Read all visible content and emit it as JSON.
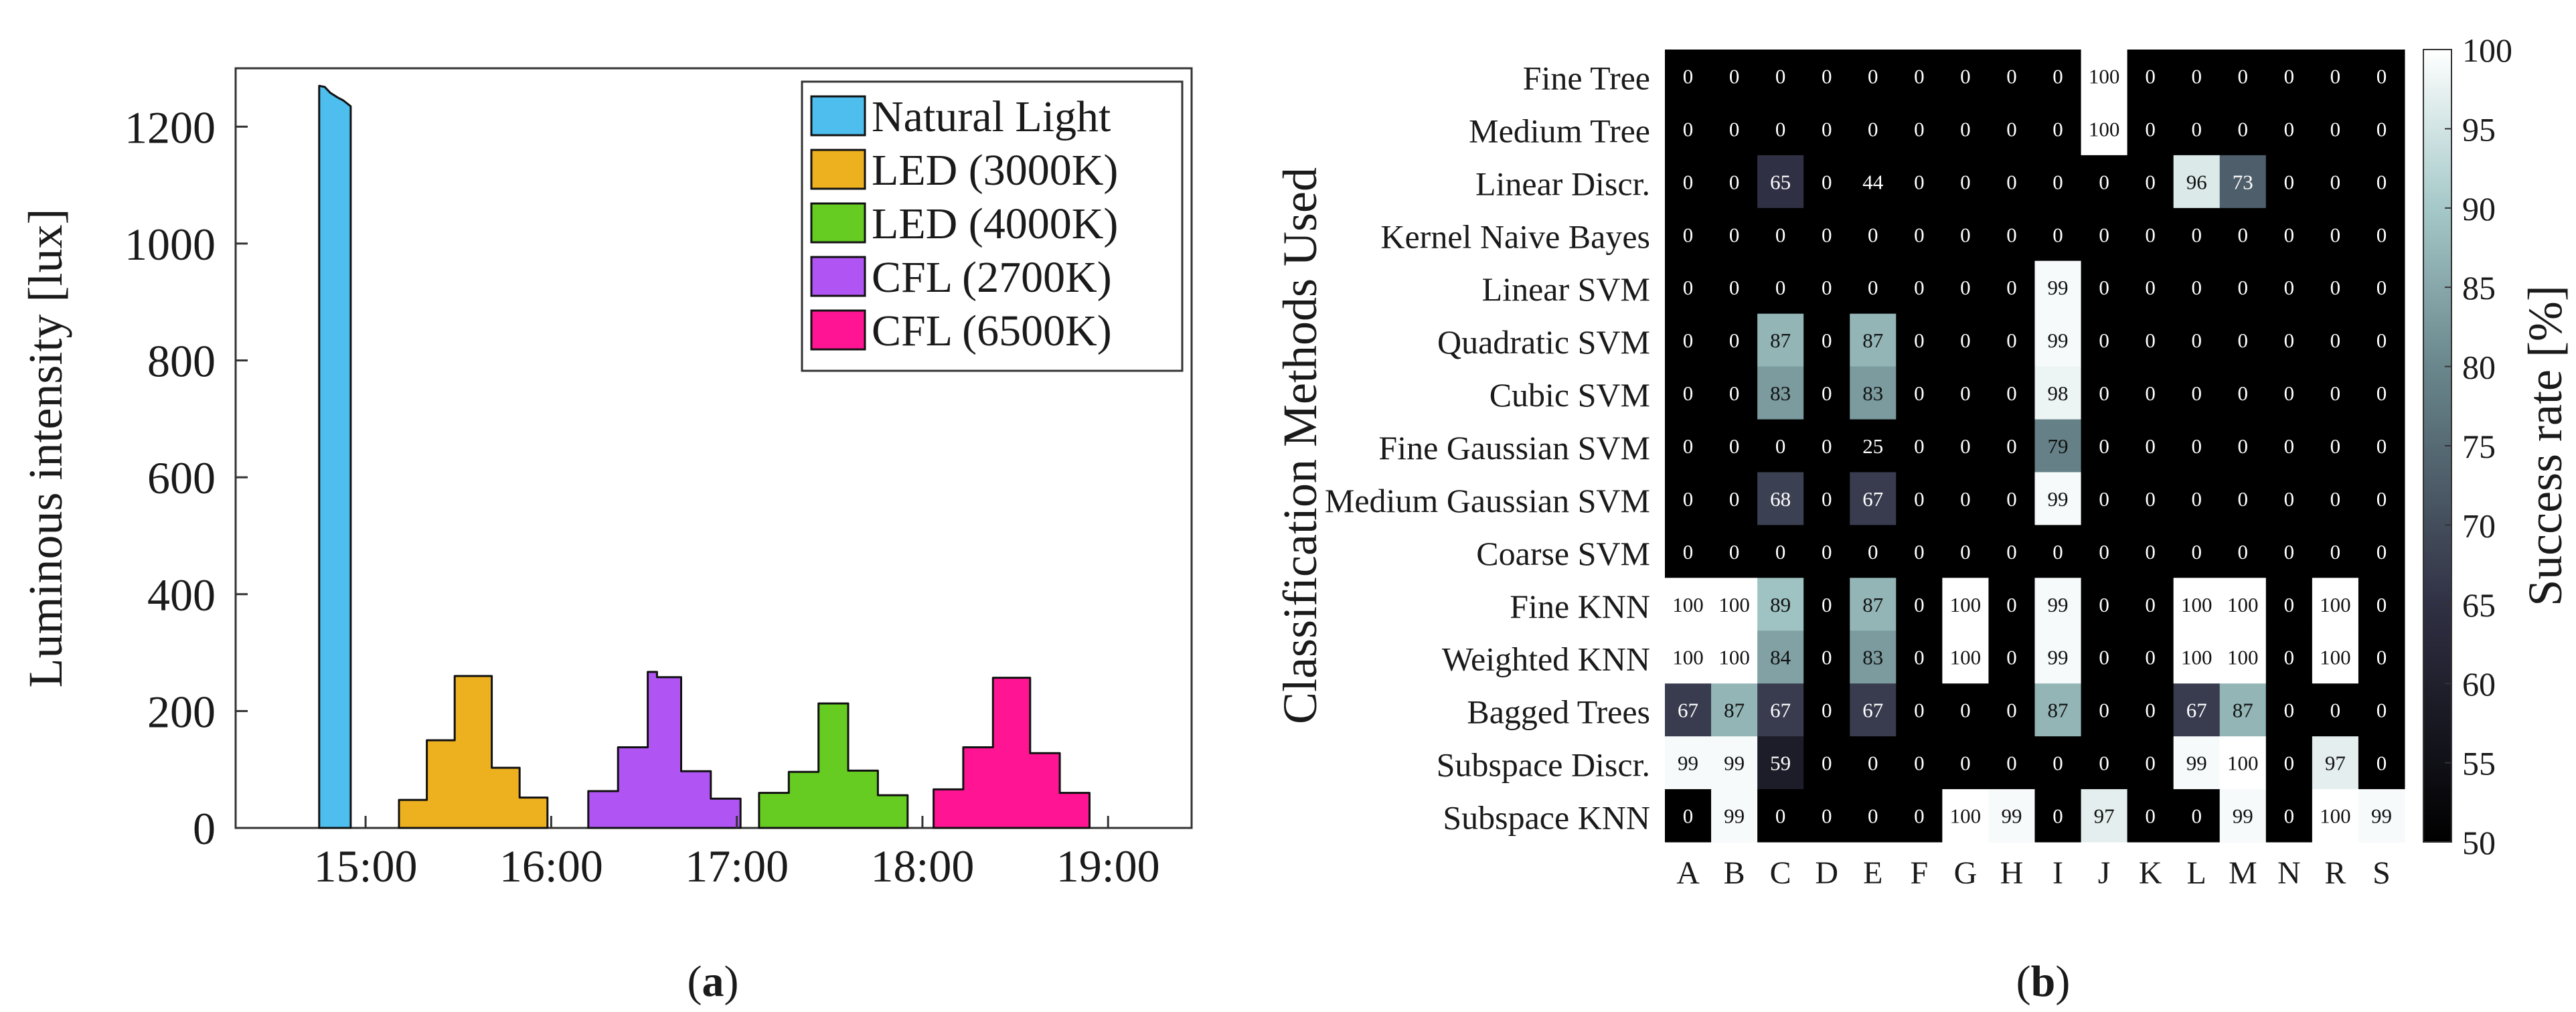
{
  "panel_labels": {
    "left_open": "(",
    "a": "a",
    "b": "b",
    "right_close": ")"
  },
  "chart_data": [
    {
      "type": "area",
      "ylabel": "Luminous intensity [lux]",
      "xlabel": "",
      "ylim": [
        0,
        1300
      ],
      "yticks": [
        "0",
        "200",
        "400",
        "600",
        "800",
        "1000",
        "1200"
      ],
      "ytick_values": [
        0,
        200,
        400,
        600,
        800,
        1000,
        1200
      ],
      "xlim_hours": [
        14.3,
        19.45
      ],
      "xticks": [
        "15:00",
        "16:00",
        "17:00",
        "18:00",
        "19:00"
      ],
      "xtick_values": [
        15,
        16,
        17,
        18,
        19
      ],
      "legend_position": "top-right",
      "series": [
        {
          "name": "Natural Light",
          "color": "#4DBEEE",
          "points": [
            [
              14.75,
              0
            ],
            [
              14.75,
              1270
            ],
            [
              14.78,
              1268
            ],
            [
              14.81,
              1258
            ],
            [
              14.85,
              1250
            ],
            [
              14.88,
              1245
            ],
            [
              14.92,
              1235
            ],
            [
              14.92,
              0
            ]
          ]
        },
        {
          "name": "LED (3000K)",
          "color": "#EDB120",
          "points": [
            [
              15.18,
              0
            ],
            [
              15.18,
              48
            ],
            [
              15.33,
              48
            ],
            [
              15.33,
              150
            ],
            [
              15.48,
              150
            ],
            [
              15.48,
              260
            ],
            [
              15.68,
              260
            ],
            [
              15.68,
              103
            ],
            [
              15.83,
              103
            ],
            [
              15.83,
              52
            ],
            [
              15.98,
              52
            ],
            [
              15.98,
              0
            ]
          ]
        },
        {
          "name": "LED (4000K)",
          "color": "#66CC22",
          "points": [
            [
              17.12,
              0
            ],
            [
              17.12,
              60
            ],
            [
              17.28,
              60
            ],
            [
              17.28,
              96
            ],
            [
              17.44,
              96
            ],
            [
              17.44,
              213
            ],
            [
              17.6,
              213
            ],
            [
              17.6,
              98
            ],
            [
              17.76,
              98
            ],
            [
              17.76,
              56
            ],
            [
              17.92,
              56
            ],
            [
              17.92,
              0
            ]
          ]
        },
        {
          "name": "CFL (2700K)",
          "color": "#B054F4",
          "points": [
            [
              16.2,
              0
            ],
            [
              16.2,
              63
            ],
            [
              16.36,
              63
            ],
            [
              16.36,
              138
            ],
            [
              16.52,
              138
            ],
            [
              16.52,
              267
            ],
            [
              16.57,
              267
            ],
            [
              16.57,
              258
            ],
            [
              16.7,
              258
            ],
            [
              16.7,
              97
            ],
            [
              16.86,
              97
            ],
            [
              16.86,
              50
            ],
            [
              17.02,
              50
            ],
            [
              17.02,
              0
            ]
          ]
        },
        {
          "name": "CFL (6500K)",
          "color": "#FF1493",
          "points": [
            [
              18.06,
              0
            ],
            [
              18.06,
              66
            ],
            [
              18.22,
              66
            ],
            [
              18.22,
              138
            ],
            [
              18.38,
              138
            ],
            [
              18.38,
              257
            ],
            [
              18.58,
              257
            ],
            [
              18.58,
              128
            ],
            [
              18.74,
              128
            ],
            [
              18.74,
              60
            ],
            [
              18.9,
              60
            ],
            [
              18.9,
              0
            ]
          ]
        }
      ]
    },
    {
      "type": "heatmap",
      "ylabel": "Classification Methods Used",
      "colorbar_label": "Success rate [%]",
      "color_range": [
        50,
        100
      ],
      "colorbar_ticks": [
        "50",
        "55",
        "60",
        "65",
        "70",
        "75",
        "80",
        "85",
        "90",
        "95",
        "100"
      ],
      "colorbar_tick_values": [
        50,
        55,
        60,
        65,
        70,
        75,
        80,
        85,
        90,
        95,
        100
      ],
      "columns": [
        "A",
        "B",
        "C",
        "D",
        "E",
        "F",
        "G",
        "H",
        "I",
        "J",
        "K",
        "L",
        "M",
        "N",
        "R",
        "S"
      ],
      "rows": [
        "Fine Tree",
        "Medium Tree",
        "Linear Discr.",
        "Kernel Naive Bayes",
        "Linear SVM",
        "Quadratic SVM",
        "Cubic SVM",
        "Fine Gaussian SVM",
        "Medium Gaussian SVM",
        "Coarse SVM",
        "Fine KNN",
        "Weighted KNN",
        "Bagged Trees",
        "Subspace Discr.",
        "Subspace KNN"
      ],
      "values": [
        [
          0,
          0,
          0,
          0,
          0,
          0,
          0,
          0,
          0,
          100,
          0,
          0,
          0,
          0,
          0,
          0
        ],
        [
          0,
          0,
          0,
          0,
          0,
          0,
          0,
          0,
          0,
          100,
          0,
          0,
          0,
          0,
          0,
          0
        ],
        [
          0,
          0,
          65,
          0,
          44,
          0,
          0,
          0,
          0,
          0,
          0,
          96,
          73,
          0,
          0,
          0
        ],
        [
          0,
          0,
          0,
          0,
          0,
          0,
          0,
          0,
          0,
          0,
          0,
          0,
          0,
          0,
          0,
          0
        ],
        [
          0,
          0,
          0,
          0,
          0,
          0,
          0,
          0,
          99,
          0,
          0,
          0,
          0,
          0,
          0,
          0
        ],
        [
          0,
          0,
          87,
          0,
          87,
          0,
          0,
          0,
          99,
          0,
          0,
          0,
          0,
          0,
          0,
          0
        ],
        [
          0,
          0,
          83,
          0,
          83,
          0,
          0,
          0,
          98,
          0,
          0,
          0,
          0,
          0,
          0,
          0
        ],
        [
          0,
          0,
          0,
          0,
          25,
          0,
          0,
          0,
          79,
          0,
          0,
          0,
          0,
          0,
          0,
          0
        ],
        [
          0,
          0,
          68,
          0,
          67,
          0,
          0,
          0,
          99,
          0,
          0,
          0,
          0,
          0,
          0,
          0
        ],
        [
          0,
          0,
          0,
          0,
          0,
          0,
          0,
          0,
          0,
          0,
          0,
          0,
          0,
          0,
          0,
          0
        ],
        [
          100,
          100,
          89,
          0,
          87,
          0,
          100,
          0,
          99,
          0,
          0,
          100,
          100,
          0,
          100,
          0
        ],
        [
          100,
          100,
          84,
          0,
          83,
          0,
          100,
          0,
          99,
          0,
          0,
          100,
          100,
          0,
          100,
          0
        ],
        [
          67,
          87,
          67,
          0,
          67,
          0,
          0,
          0,
          87,
          0,
          0,
          67,
          87,
          0,
          0,
          0
        ],
        [
          99,
          99,
          59,
          0,
          0,
          0,
          0,
          0,
          0,
          0,
          0,
          99,
          100,
          0,
          97,
          0
        ],
        [
          0,
          99,
          0,
          0,
          0,
          0,
          100,
          99,
          0,
          97,
          0,
          0,
          99,
          0,
          100,
          99
        ]
      ]
    }
  ]
}
